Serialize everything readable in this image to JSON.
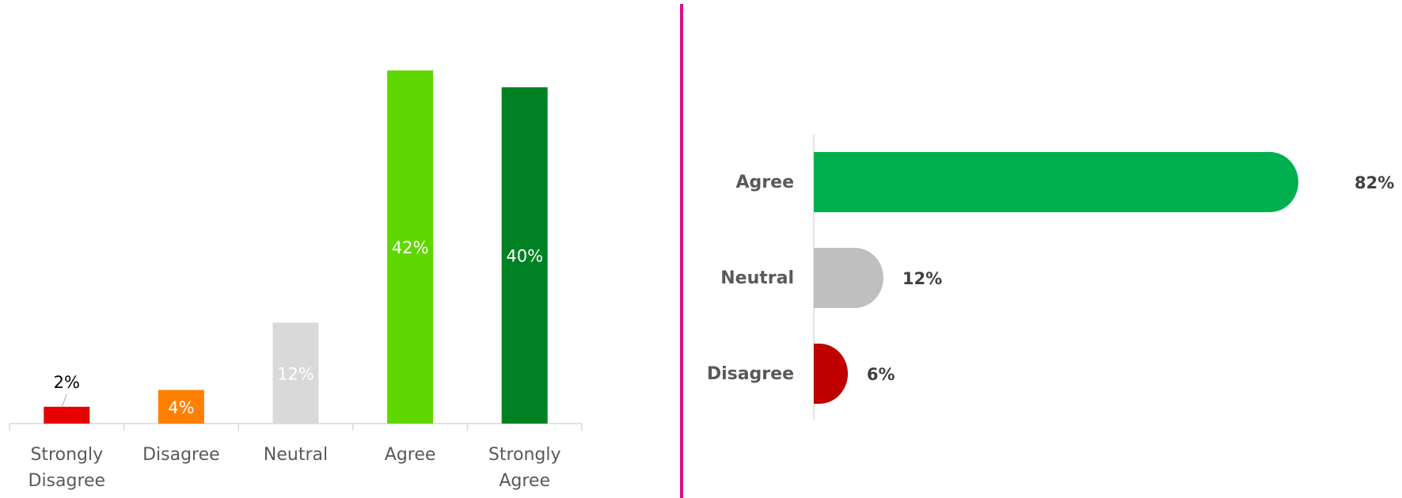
{
  "chart_data": [
    {
      "type": "bar",
      "orientation": "vertical",
      "categories": [
        {
          "line1": "Strongly",
          "line2": "Disagree"
        },
        {
          "line1": "Disagree",
          "line2": ""
        },
        {
          "line1": "Neutral",
          "line2": ""
        },
        {
          "line1": "Agree",
          "line2": ""
        },
        {
          "line1": "Strongly",
          "line2": "Agree"
        }
      ],
      "values": [
        2,
        4,
        12,
        42,
        40
      ],
      "data_labels": [
        "2%",
        "4%",
        "12%",
        "42%",
        "40%"
      ],
      "colors": [
        "#e60000",
        "#ff8000",
        "#d9d9d9",
        "#5fd700",
        "#008224"
      ],
      "label_colors": [
        "#000000",
        "#ffffff",
        "#ffffff",
        "#ffffff",
        "#ffffff"
      ],
      "ylim": [
        0,
        42
      ],
      "grid": false
    },
    {
      "type": "bar",
      "orientation": "horizontal",
      "categories": [
        "Agree",
        "Neutral",
        "Disagree"
      ],
      "values": [
        82,
        12,
        6
      ],
      "data_labels": [
        "82%",
        "12%",
        "6%"
      ],
      "colors": [
        "#00b050",
        "#bfbfbf",
        "#c00000"
      ],
      "xlim": [
        0,
        82
      ],
      "grid": false
    }
  ],
  "divider_color": "#d6128a"
}
